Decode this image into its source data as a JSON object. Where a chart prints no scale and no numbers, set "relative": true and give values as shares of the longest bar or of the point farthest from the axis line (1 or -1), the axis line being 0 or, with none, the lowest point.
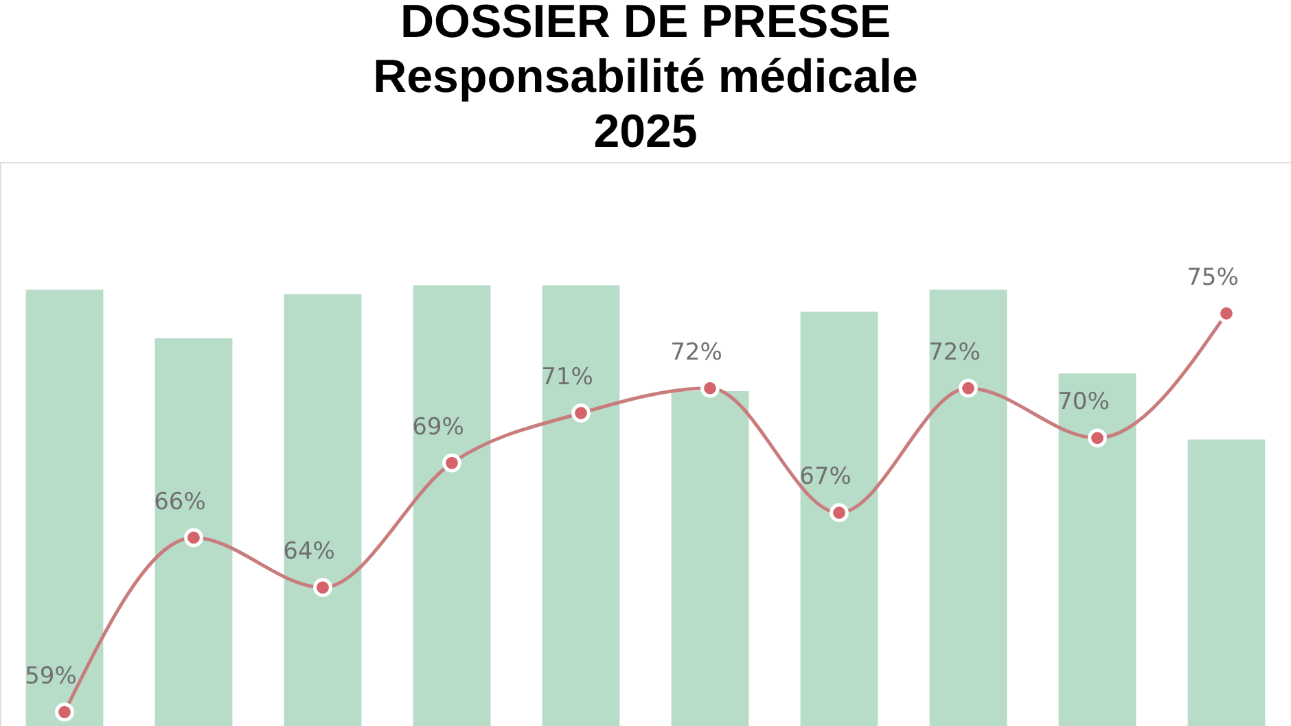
{
  "chart_data": [
    {
      "type": "bar",
      "title": [
        "DOSSIER DE PRESSE",
        "Responsabilité médicale",
        "2025"
      ],
      "relative": true,
      "categories": [
        null,
        null,
        null,
        null,
        null,
        null,
        null,
        null,
        null,
        null
      ],
      "color": "#b7dcc8",
      "values": [
        0.99,
        0.88,
        0.98,
        1,
        1,
        0.76,
        0.94,
        0.99,
        0.8,
        0.65
      ]
    },
    {
      "type": "line",
      "categories": [
        null,
        null,
        null,
        null,
        null,
        null,
        null,
        null,
        null,
        null
      ],
      "color": "#c97c7c",
      "marker": "circle",
      "line_style": "solid",
      "values": [
        59,
        66,
        64,
        69,
        71,
        72,
        67,
        72,
        70,
        75
      ],
      "value_labels": [
        "59%",
        "66%",
        "64%",
        "69%",
        "71%",
        "72%",
        "67%",
        "72%",
        "70%",
        "75%"
      ]
    }
  ]
}
